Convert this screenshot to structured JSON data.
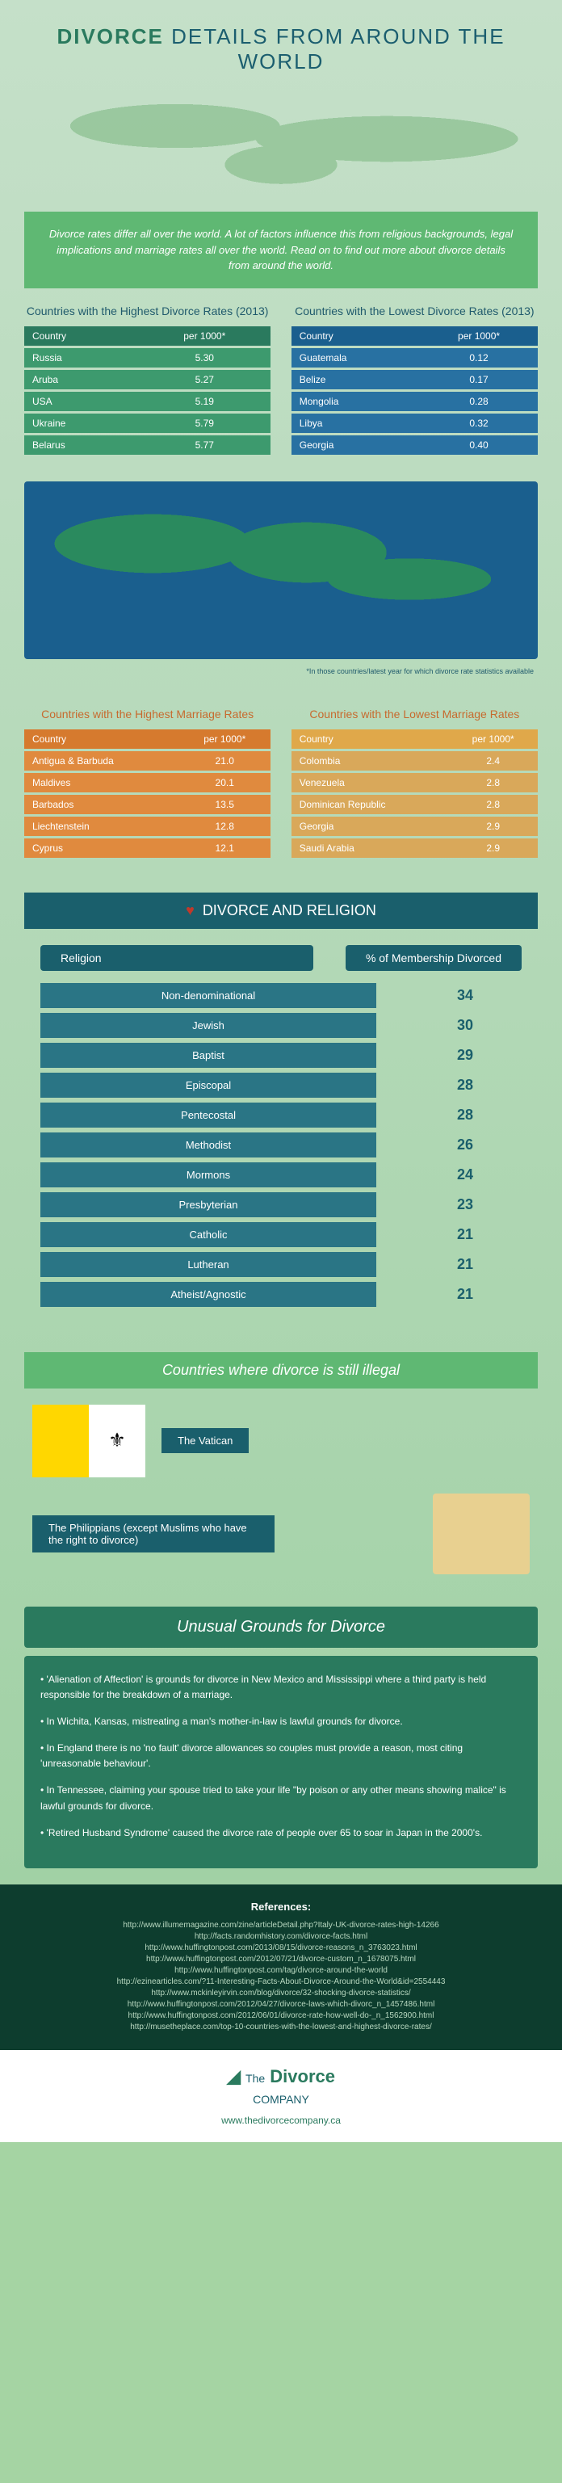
{
  "header": {
    "pre": "DIVORCE",
    "rest": " DETAILS FROM AROUND THE WORLD"
  },
  "intro": "Divorce rates differ all over the world. A lot of factors influence this from religious backgrounds, legal implications and marriage rates all over the world. Read on to find out more about divorce details from around the world.",
  "highestDivorce": {
    "title": "Countries with the Highest Divorce Rates (2013)",
    "cols": [
      "Country",
      "per 1000*"
    ],
    "rows": [
      [
        "Russia",
        "5.30"
      ],
      [
        "Aruba",
        "5.27"
      ],
      [
        "USA",
        "5.19"
      ],
      [
        "Ukraine",
        "5.79"
      ],
      [
        "Belarus",
        "5.77"
      ]
    ]
  },
  "lowestDivorce": {
    "title": "Countries with the Lowest Divorce Rates (2013)",
    "cols": [
      "Country",
      "per 1000*"
    ],
    "rows": [
      [
        "Guatemala",
        "0.12"
      ],
      [
        "Belize",
        "0.17"
      ],
      [
        "Mongolia",
        "0.28"
      ],
      [
        "Libya",
        "0.32"
      ],
      [
        "Georgia",
        "0.40"
      ]
    ]
  },
  "footnote": "*In those countries/latest year for which divorce rate statistics available",
  "highestMarriage": {
    "title": "Countries with the Highest Marriage Rates",
    "cols": [
      "Country",
      "per 1000*"
    ],
    "rows": [
      [
        "Antigua & Barbuda",
        "21.0"
      ],
      [
        "Maldives",
        "20.1"
      ],
      [
        "Barbados",
        "13.5"
      ],
      [
        "Liechtenstein",
        "12.8"
      ],
      [
        "Cyprus",
        "12.1"
      ]
    ]
  },
  "lowestMarriage": {
    "title": "Countries with the Lowest Marriage Rates",
    "cols": [
      "Country",
      "per 1000*"
    ],
    "rows": [
      [
        "Colombia",
        "2.4"
      ],
      [
        "Venezuela",
        "2.8"
      ],
      [
        "Dominican Republic",
        "2.8"
      ],
      [
        "Georgia",
        "2.9"
      ],
      [
        "Saudi Arabia",
        "2.9"
      ]
    ]
  },
  "ribbon": "DIVORCE AND RELIGION",
  "religionHeaders": [
    "Religion",
    "% of Membership Divorced"
  ],
  "religions": [
    {
      "name": "Non-denominational",
      "pct": "34"
    },
    {
      "name": "Jewish",
      "pct": "30"
    },
    {
      "name": "Baptist",
      "pct": "29"
    },
    {
      "name": "Episcopal",
      "pct": "28"
    },
    {
      "name": "Pentecostal",
      "pct": "28"
    },
    {
      "name": "Methodist",
      "pct": "26"
    },
    {
      "name": "Mormons",
      "pct": "24"
    },
    {
      "name": "Presbyterian",
      "pct": "23"
    },
    {
      "name": "Catholic",
      "pct": "21"
    },
    {
      "name": "Lutheran",
      "pct": "21"
    },
    {
      "name": "Atheist/Agnostic",
      "pct": "21"
    }
  ],
  "illegalTitle": "Countries where divorce is still illegal",
  "vatican": "The Vatican",
  "philippines": "The Philippians (except Muslims who have the right to divorce)",
  "groundsTitle": "Unusual Grounds for Divorce",
  "grounds": [
    "• 'Alienation of Affection' is grounds for divorce in New Mexico and Mississippi where a third party is held responsible for the breakdown of a marriage.",
    "• In Wichita, Kansas, mistreating a man's mother-in-law is lawful grounds for divorce.",
    "• In England there is no 'no fault' divorce allowances so couples must provide a reason, most citing 'unreasonable behaviour'.",
    "• In Tennessee, claiming your spouse tried to take your life \"by poison or any other means showing malice\" is lawful grounds for divorce.",
    "• 'Retired Husband Syndrome' caused the divorce rate of people over 65 to soar in Japan in the 2000's."
  ],
  "refsTitle": "References:",
  "refs": [
    "http://www.illumemagazine.com/zine/articleDetail.php?Italy-UK-divorce-rates-high-14266",
    "http://facts.randomhistory.com/divorce-facts.html",
    "http://www.huffingtonpost.com/2013/08/15/divorce-reasons_n_3763023.html",
    "http://www.huffingtonpost.com/2012/07/21/divorce-custom_n_1678075.html",
    "http://www.huffingtonpost.com/tag/divorce-around-the-world",
    "http://ezinearticles.com/?11-Interesting-Facts-About-Divorce-Around-the-World&id=2554443",
    "http://www.mckinleyirvin.com/blog/divorce/32-shocking-divorce-statistics/",
    "http://www.huffingtonpost.com/2012/04/27/divorce-laws-which-divorc_n_1457486.html",
    "http://www.huffingtonpost.com/2012/06/01/divorce-rate-how-well-do-_n_1562900.html",
    "http://musetheplace.com/top-10-countries-with-the-lowest-and-highest-divorce-rates/"
  ],
  "logo": {
    "main": "Divorce",
    "sub": "COMPANY",
    "the": "The"
  },
  "url": "www.thedivorcecompany.ca"
}
